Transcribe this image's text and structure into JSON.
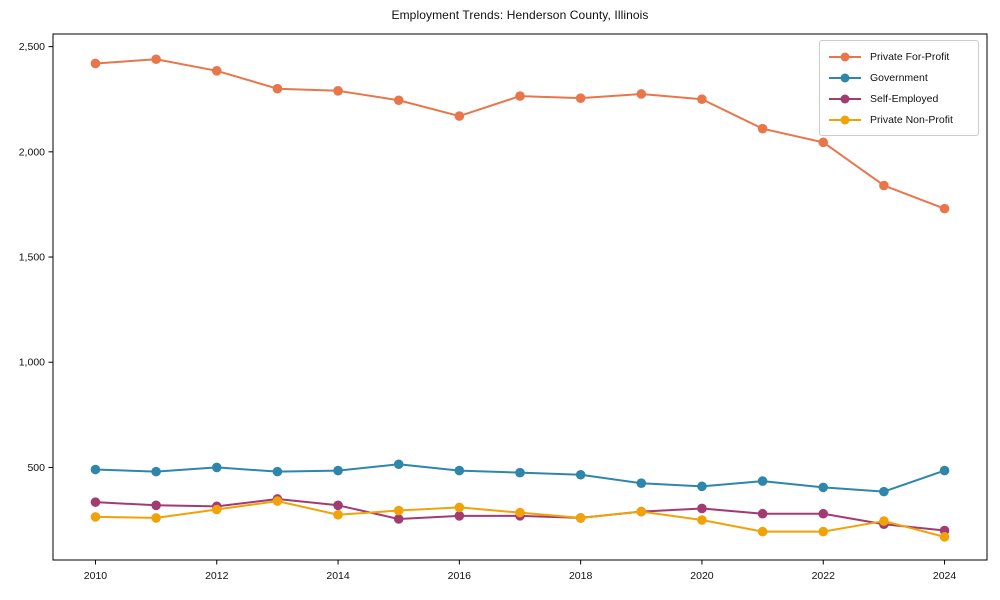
{
  "title": "Employment Trends: Henderson County, Illinois",
  "chart_data": {
    "type": "line",
    "title": "Employment Trends: Henderson County, Illinois",
    "xlabel": "",
    "ylabel": "",
    "x": [
      2010,
      2011,
      2012,
      2013,
      2014,
      2015,
      2016,
      2017,
      2018,
      2019,
      2020,
      2021,
      2022,
      2023,
      2024
    ],
    "series": [
      {
        "name": "Private For-Profit",
        "color": "#E8764A",
        "values": [
          2420,
          2440,
          2385,
          2300,
          2290,
          2245,
          2170,
          2265,
          2255,
          2275,
          2250,
          2110,
          2045,
          1840,
          1730
        ]
      },
      {
        "name": "Government",
        "color": "#2E86AB",
        "values": [
          490,
          480,
          500,
          480,
          485,
          515,
          485,
          475,
          465,
          425,
          410,
          435,
          405,
          385,
          485
        ]
      },
      {
        "name": "Self-Employed",
        "color": "#A23B72",
        "values": [
          335,
          320,
          315,
          350,
          320,
          255,
          270,
          270,
          260,
          290,
          305,
          280,
          280,
          230,
          200
        ]
      },
      {
        "name": "Private Non-Profit",
        "color": "#F1A208",
        "values": [
          265,
          260,
          300,
          340,
          275,
          295,
          310,
          285,
          260,
          290,
          250,
          195,
          195,
          245,
          170
        ]
      }
    ],
    "xticks": [
      2010,
      2012,
      2014,
      2016,
      2018,
      2020,
      2022,
      2024
    ],
    "yticks": [
      500,
      1000,
      1500,
      2000,
      2500
    ],
    "ytick_labels": [
      "500",
      "1,000",
      "1,500",
      "2,000",
      "2,500"
    ],
    "xlim": [
      2009.3,
      2024.7
    ],
    "ylim": [
      60,
      2560
    ],
    "grid": false,
    "legend_position": "upper right",
    "marker": "circle",
    "spine_color": "#000000",
    "background_color": "#ffffff"
  }
}
